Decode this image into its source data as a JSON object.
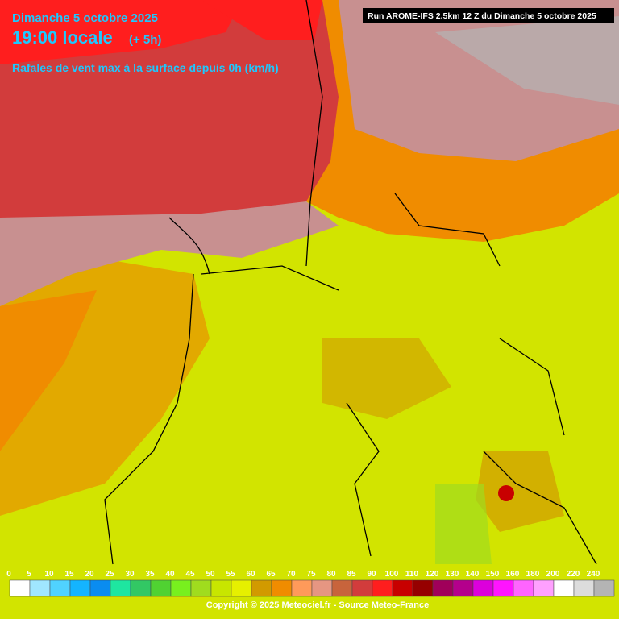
{
  "header": {
    "date": "Dimanche 5 octobre 2025",
    "time": "19:00 locale",
    "offset": "(+ 5h)",
    "subtitle": "Rafales de vent max à la surface depuis 0h (km/h)",
    "run": "Run AROME-IFS 2.5km 12 Z du Dimanche 5 octobre 2025"
  },
  "legend": {
    "items": [
      {
        "label": 0,
        "color": "#ffffff"
      },
      {
        "label": 5,
        "color": "#a0e6ff"
      },
      {
        "label": 10,
        "color": "#50d2ff"
      },
      {
        "label": 15,
        "color": "#14b4ff"
      },
      {
        "label": 20,
        "color": "#0a8cf0"
      },
      {
        "label": 25,
        "color": "#1ee6a0"
      },
      {
        "label": 30,
        "color": "#32c864"
      },
      {
        "label": 35,
        "color": "#50d232"
      },
      {
        "label": 40,
        "color": "#78f01e"
      },
      {
        "label": 45,
        "color": "#a0dc1e"
      },
      {
        "label": 50,
        "color": "#c8e600"
      },
      {
        "label": 55,
        "color": "#e6f000"
      },
      {
        "label": 60,
        "color": "#d29a00"
      },
      {
        "label": 65,
        "color": "#f08c00"
      },
      {
        "label": 70,
        "color": "#ff9a5a"
      },
      {
        "label": 75,
        "color": "#e69682"
      },
      {
        "label": 80,
        "color": "#c8643c"
      },
      {
        "label": 85,
        "color": "#d23c3c"
      },
      {
        "label": 90,
        "color": "#ff1e1e"
      },
      {
        "label": 100,
        "color": "#c80000"
      },
      {
        "label": 110,
        "color": "#960000"
      },
      {
        "label": 120,
        "color": "#a0005a"
      },
      {
        "label": 130,
        "color": "#b4008c"
      },
      {
        "label": 140,
        "color": "#dc00dc"
      },
      {
        "label": 150,
        "color": "#ff14ff"
      },
      {
        "label": 160,
        "color": "#ff64ff"
      },
      {
        "label": 180,
        "color": "#ffa0ff"
      },
      {
        "label": 200,
        "color": "#ffffff"
      },
      {
        "label": 220,
        "color": "#dcdcdc"
      },
      {
        "label": 240,
        "color": "#b4b4b4"
      }
    ]
  },
  "footer": {
    "copyright": "Copyright © 2025 Meteociel.fr - Source Meteo-France"
  }
}
